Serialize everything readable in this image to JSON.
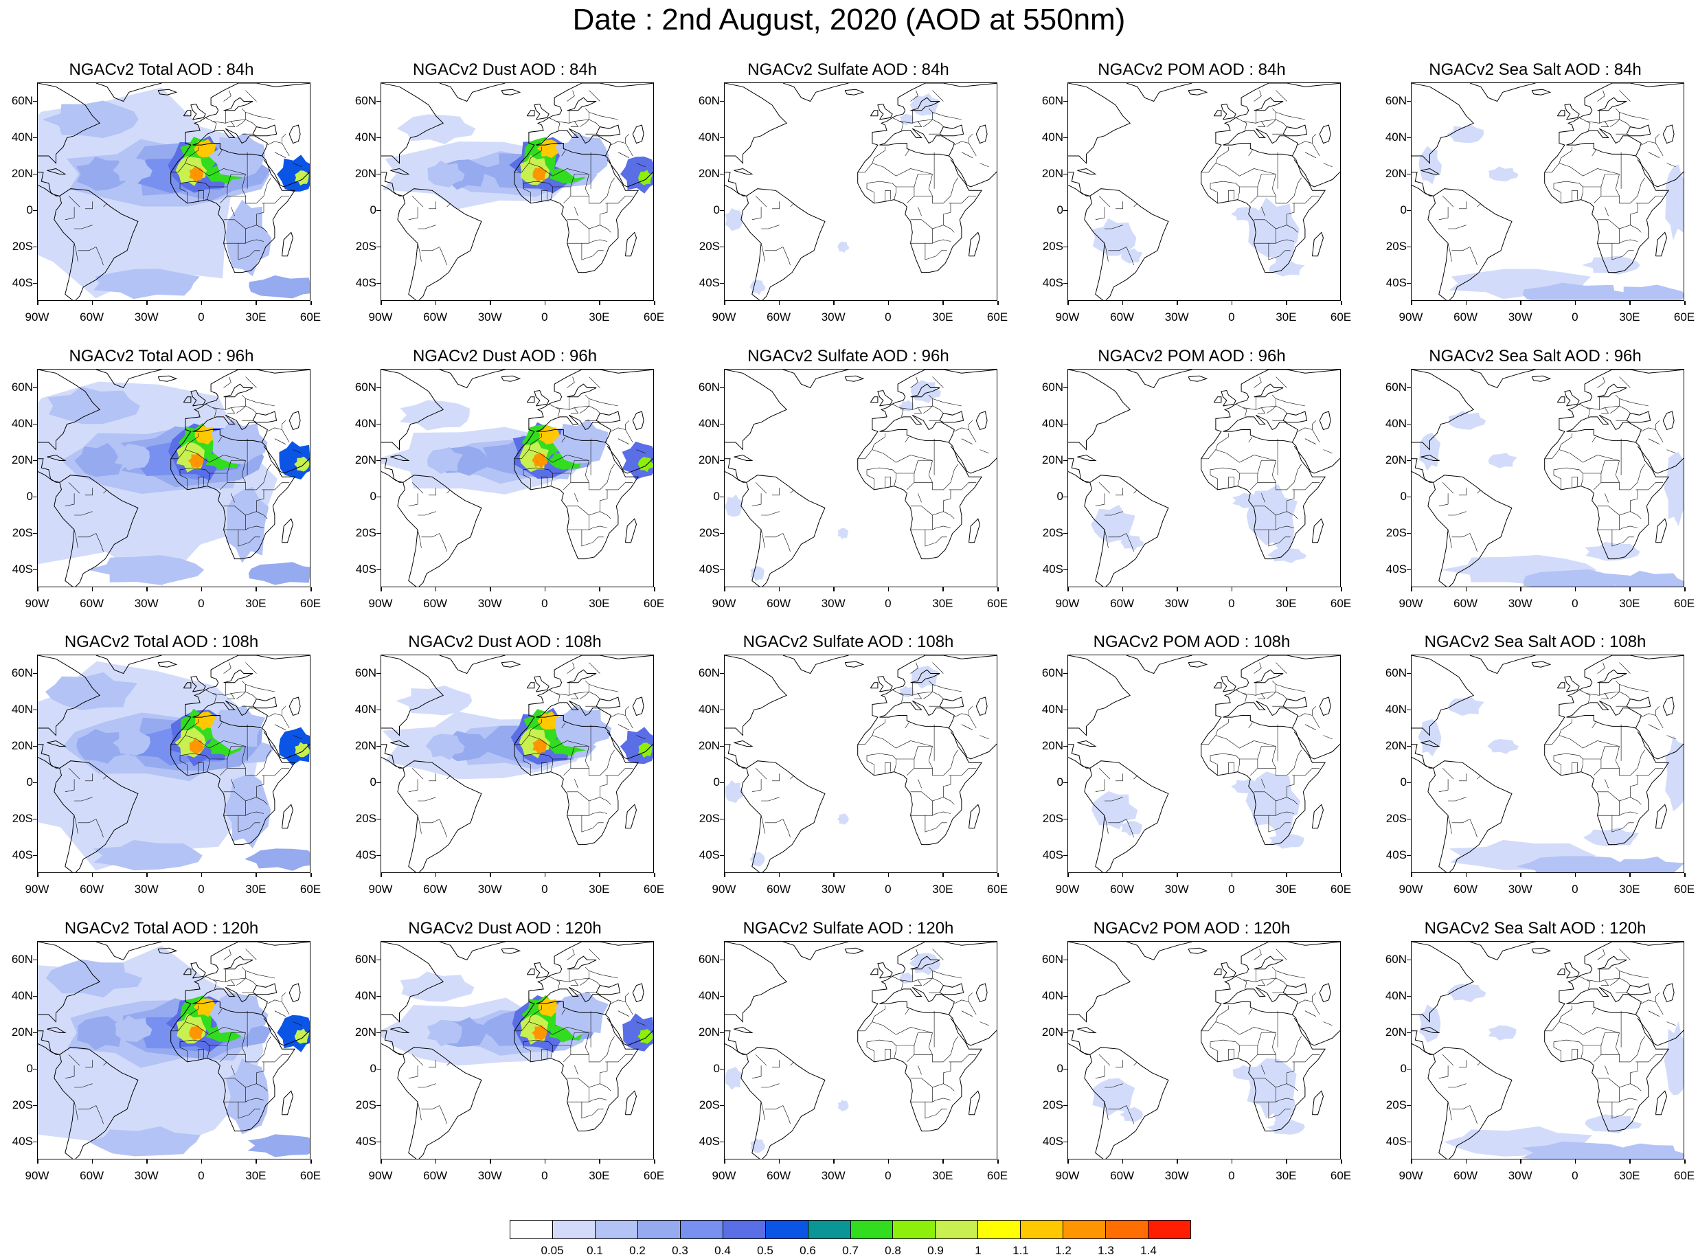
{
  "title": "Date : 2nd August, 2020 (AOD at 550nm)",
  "panels": [
    {
      "title": "NGACv2 Total AOD : 84h",
      "field": "total"
    },
    {
      "title": "NGACv2 Dust AOD : 84h",
      "field": "dust"
    },
    {
      "title": "NGACv2 Sulfate AOD : 84h",
      "field": "sulfate"
    },
    {
      "title": "NGACv2 POM AOD : 84h",
      "field": "pom"
    },
    {
      "title": "NGACv2 Sea Salt AOD : 84h",
      "field": "seasalt"
    },
    {
      "title": "NGACv2 Total AOD : 96h",
      "field": "total"
    },
    {
      "title": "NGACv2 Dust AOD : 96h",
      "field": "dust"
    },
    {
      "title": "NGACv2 Sulfate AOD : 96h",
      "field": "sulfate"
    },
    {
      "title": "NGACv2 POM AOD : 96h",
      "field": "pom"
    },
    {
      "title": "NGACv2 Sea Salt AOD : 96h",
      "field": "seasalt"
    },
    {
      "title": "NGACv2 Total AOD : 108h",
      "field": "total"
    },
    {
      "title": "NGACv2 Dust AOD : 108h",
      "field": "dust"
    },
    {
      "title": "NGACv2 Sulfate AOD : 108h",
      "field": "sulfate"
    },
    {
      "title": "NGACv2 POM AOD : 108h",
      "field": "pom"
    },
    {
      "title": "NGACv2 Sea Salt AOD : 108h",
      "field": "seasalt"
    },
    {
      "title": "NGACv2 Total AOD : 120h",
      "field": "total"
    },
    {
      "title": "NGACv2 Dust AOD : 120h",
      "field": "dust"
    },
    {
      "title": "NGACv2 Sulfate AOD : 120h",
      "field": "sulfate"
    },
    {
      "title": "NGACv2 POM AOD : 120h",
      "field": "pom"
    },
    {
      "title": "NGACv2 Sea Salt  AOD : 120h",
      "field": "seasalt"
    }
  ],
  "lat_labels": [
    "60N",
    "40N",
    "20N",
    "0",
    "20S",
    "40S"
  ],
  "lat_values": [
    60,
    40,
    20,
    0,
    -20,
    -40
  ],
  "lon_labels": [
    "90W",
    "60W",
    "30W",
    "0",
    "30E",
    "60E"
  ],
  "lon_values": [
    -90,
    -60,
    -30,
    0,
    30,
    60
  ],
  "map_extent": {
    "lon": [
      -90,
      60
    ],
    "lat": [
      -50,
      70
    ]
  },
  "colorbar": {
    "labels": [
      "0.05",
      "0.1",
      "0.2",
      "0.3",
      "0.4",
      "0.5",
      "0.6",
      "0.7",
      "0.8",
      "0.9",
      "1",
      "1.1",
      "1.2",
      "1.3",
      "1.4"
    ],
    "colors": [
      "#ffffff",
      "#d2dcfa",
      "#b4c3f5",
      "#96aaf0",
      "#7891f0",
      "#5a6ee6",
      "#0a55e6",
      "#0a9696",
      "#32dc1e",
      "#8cf00a",
      "#c8f050",
      "#ffff00",
      "#ffc800",
      "#ff9600",
      "#ff6e00",
      "#ff1e00"
    ]
  }
}
